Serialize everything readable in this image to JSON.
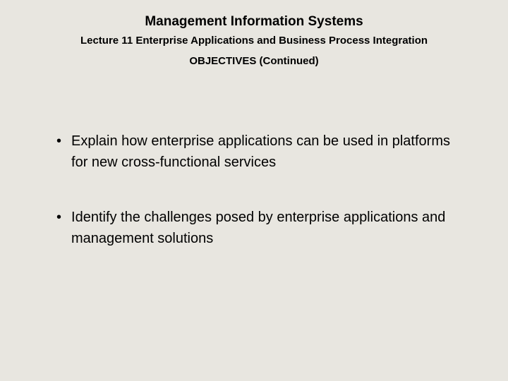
{
  "header": {
    "main_title": "Management Information Systems",
    "subtitle": "Lecture 11 Enterprise Applications and Business Process Integration",
    "section_title": "OBJECTIVES (Continued)"
  },
  "bullets": [
    {
      "marker": "•",
      "text": "Explain how enterprise applications can be used in platforms for new cross-functional services"
    },
    {
      "marker": "•",
      "text": "Identify the challenges posed by enterprise applications and management solutions"
    }
  ],
  "style": {
    "background_color": "#e8e6e0",
    "text_color": "#000000",
    "main_title_fontsize": 19,
    "subtitle_fontsize": 15,
    "section_title_fontsize": 15,
    "bullet_fontsize": 20,
    "font_family": "Arial"
  }
}
